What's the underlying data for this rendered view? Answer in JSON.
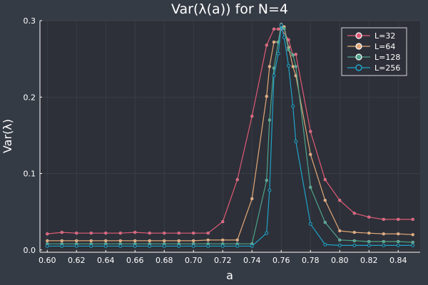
{
  "chart_data": {
    "type": "line",
    "title": "Var(λ(a)) for N=4",
    "xlabel": "a",
    "ylabel": "Var(λ)",
    "xlim": [
      0.595,
      0.855
    ],
    "ylim": [
      -0.003,
      0.3
    ],
    "xticks": [
      0.6,
      0.62,
      0.64,
      0.66,
      0.68,
      0.7,
      0.72,
      0.74,
      0.76,
      0.78,
      0.8,
      0.82,
      0.84
    ],
    "xtick_labels": [
      "0.60",
      "0.62",
      "0.64",
      "0.66",
      "0.68",
      "0.70",
      "0.72",
      "0.74",
      "0.76",
      "0.78",
      "0.80",
      "0.82",
      "0.84"
    ],
    "yticks": [
      0.0,
      0.1,
      0.2,
      0.3
    ],
    "ytick_labels": [
      "0.0",
      "0.1",
      "0.2",
      "0.3"
    ],
    "grid": true,
    "legend_position": "top-right",
    "series": [
      {
        "name": "L=32",
        "color": "#e05a77",
        "hollow": false,
        "x": [
          0.6,
          0.61,
          0.62,
          0.63,
          0.64,
          0.65,
          0.66,
          0.67,
          0.68,
          0.69,
          0.7,
          0.71,
          0.72,
          0.73,
          0.74,
          0.75,
          0.755,
          0.758,
          0.76,
          0.765,
          0.768,
          0.77,
          0.78,
          0.79,
          0.8,
          0.81,
          0.82,
          0.83,
          0.84,
          0.85
        ],
        "values": [
          0.021,
          0.023,
          0.022,
          0.022,
          0.022,
          0.022,
          0.023,
          0.022,
          0.022,
          0.022,
          0.022,
          0.022,
          0.037,
          0.092,
          0.175,
          0.268,
          0.289,
          0.289,
          0.289,
          0.275,
          0.255,
          0.256,
          0.155,
          0.092,
          0.065,
          0.048,
          0.043,
          0.04,
          0.04,
          0.04
        ]
      },
      {
        "name": "L=64",
        "color": "#e3a878",
        "hollow": false,
        "x": [
          0.6,
          0.61,
          0.62,
          0.63,
          0.64,
          0.65,
          0.66,
          0.67,
          0.68,
          0.69,
          0.7,
          0.71,
          0.72,
          0.73,
          0.74,
          0.75,
          0.752,
          0.755,
          0.758,
          0.76,
          0.762,
          0.765,
          0.768,
          0.77,
          0.78,
          0.79,
          0.8,
          0.81,
          0.82,
          0.83,
          0.84,
          0.85
        ],
        "values": [
          0.012,
          0.012,
          0.012,
          0.012,
          0.012,
          0.012,
          0.012,
          0.012,
          0.012,
          0.012,
          0.012,
          0.013,
          0.013,
          0.013,
          0.067,
          0.201,
          0.24,
          0.272,
          0.272,
          0.295,
          0.292,
          0.265,
          0.24,
          0.228,
          0.125,
          0.065,
          0.025,
          0.023,
          0.022,
          0.021,
          0.021,
          0.02
        ]
      },
      {
        "name": "L=128",
        "color": "#4ea48c",
        "hollow": false,
        "x": [
          0.6,
          0.61,
          0.62,
          0.63,
          0.64,
          0.65,
          0.66,
          0.67,
          0.68,
          0.69,
          0.7,
          0.71,
          0.72,
          0.73,
          0.74,
          0.75,
          0.752,
          0.755,
          0.758,
          0.76,
          0.762,
          0.765,
          0.768,
          0.77,
          0.78,
          0.79,
          0.8,
          0.81,
          0.82,
          0.83,
          0.84,
          0.85
        ],
        "values": [
          0.008,
          0.008,
          0.008,
          0.008,
          0.008,
          0.008,
          0.008,
          0.008,
          0.008,
          0.008,
          0.008,
          0.008,
          0.008,
          0.008,
          0.008,
          0.091,
          0.17,
          0.238,
          0.272,
          0.292,
          0.29,
          0.262,
          0.255,
          0.24,
          0.082,
          0.036,
          0.013,
          0.012,
          0.011,
          0.011,
          0.011,
          0.01
        ]
      },
      {
        "name": "L=256",
        "color": "#1fa3c9",
        "hollow": true,
        "x": [
          0.6,
          0.61,
          0.62,
          0.63,
          0.64,
          0.65,
          0.66,
          0.67,
          0.68,
          0.69,
          0.7,
          0.71,
          0.72,
          0.73,
          0.74,
          0.75,
          0.752,
          0.755,
          0.758,
          0.76,
          0.762,
          0.765,
          0.768,
          0.77,
          0.78,
          0.79,
          0.8,
          0.81,
          0.82,
          0.83,
          0.84,
          0.85
        ],
        "values": [
          0.005,
          0.005,
          0.005,
          0.005,
          0.005,
          0.005,
          0.005,
          0.005,
          0.005,
          0.005,
          0.005,
          0.005,
          0.005,
          0.005,
          0.005,
          0.022,
          0.078,
          0.228,
          0.257,
          0.294,
          0.278,
          0.241,
          0.188,
          0.142,
          0.034,
          0.007,
          0.006,
          0.006,
          0.006,
          0.006,
          0.006,
          0.006
        ]
      }
    ]
  }
}
